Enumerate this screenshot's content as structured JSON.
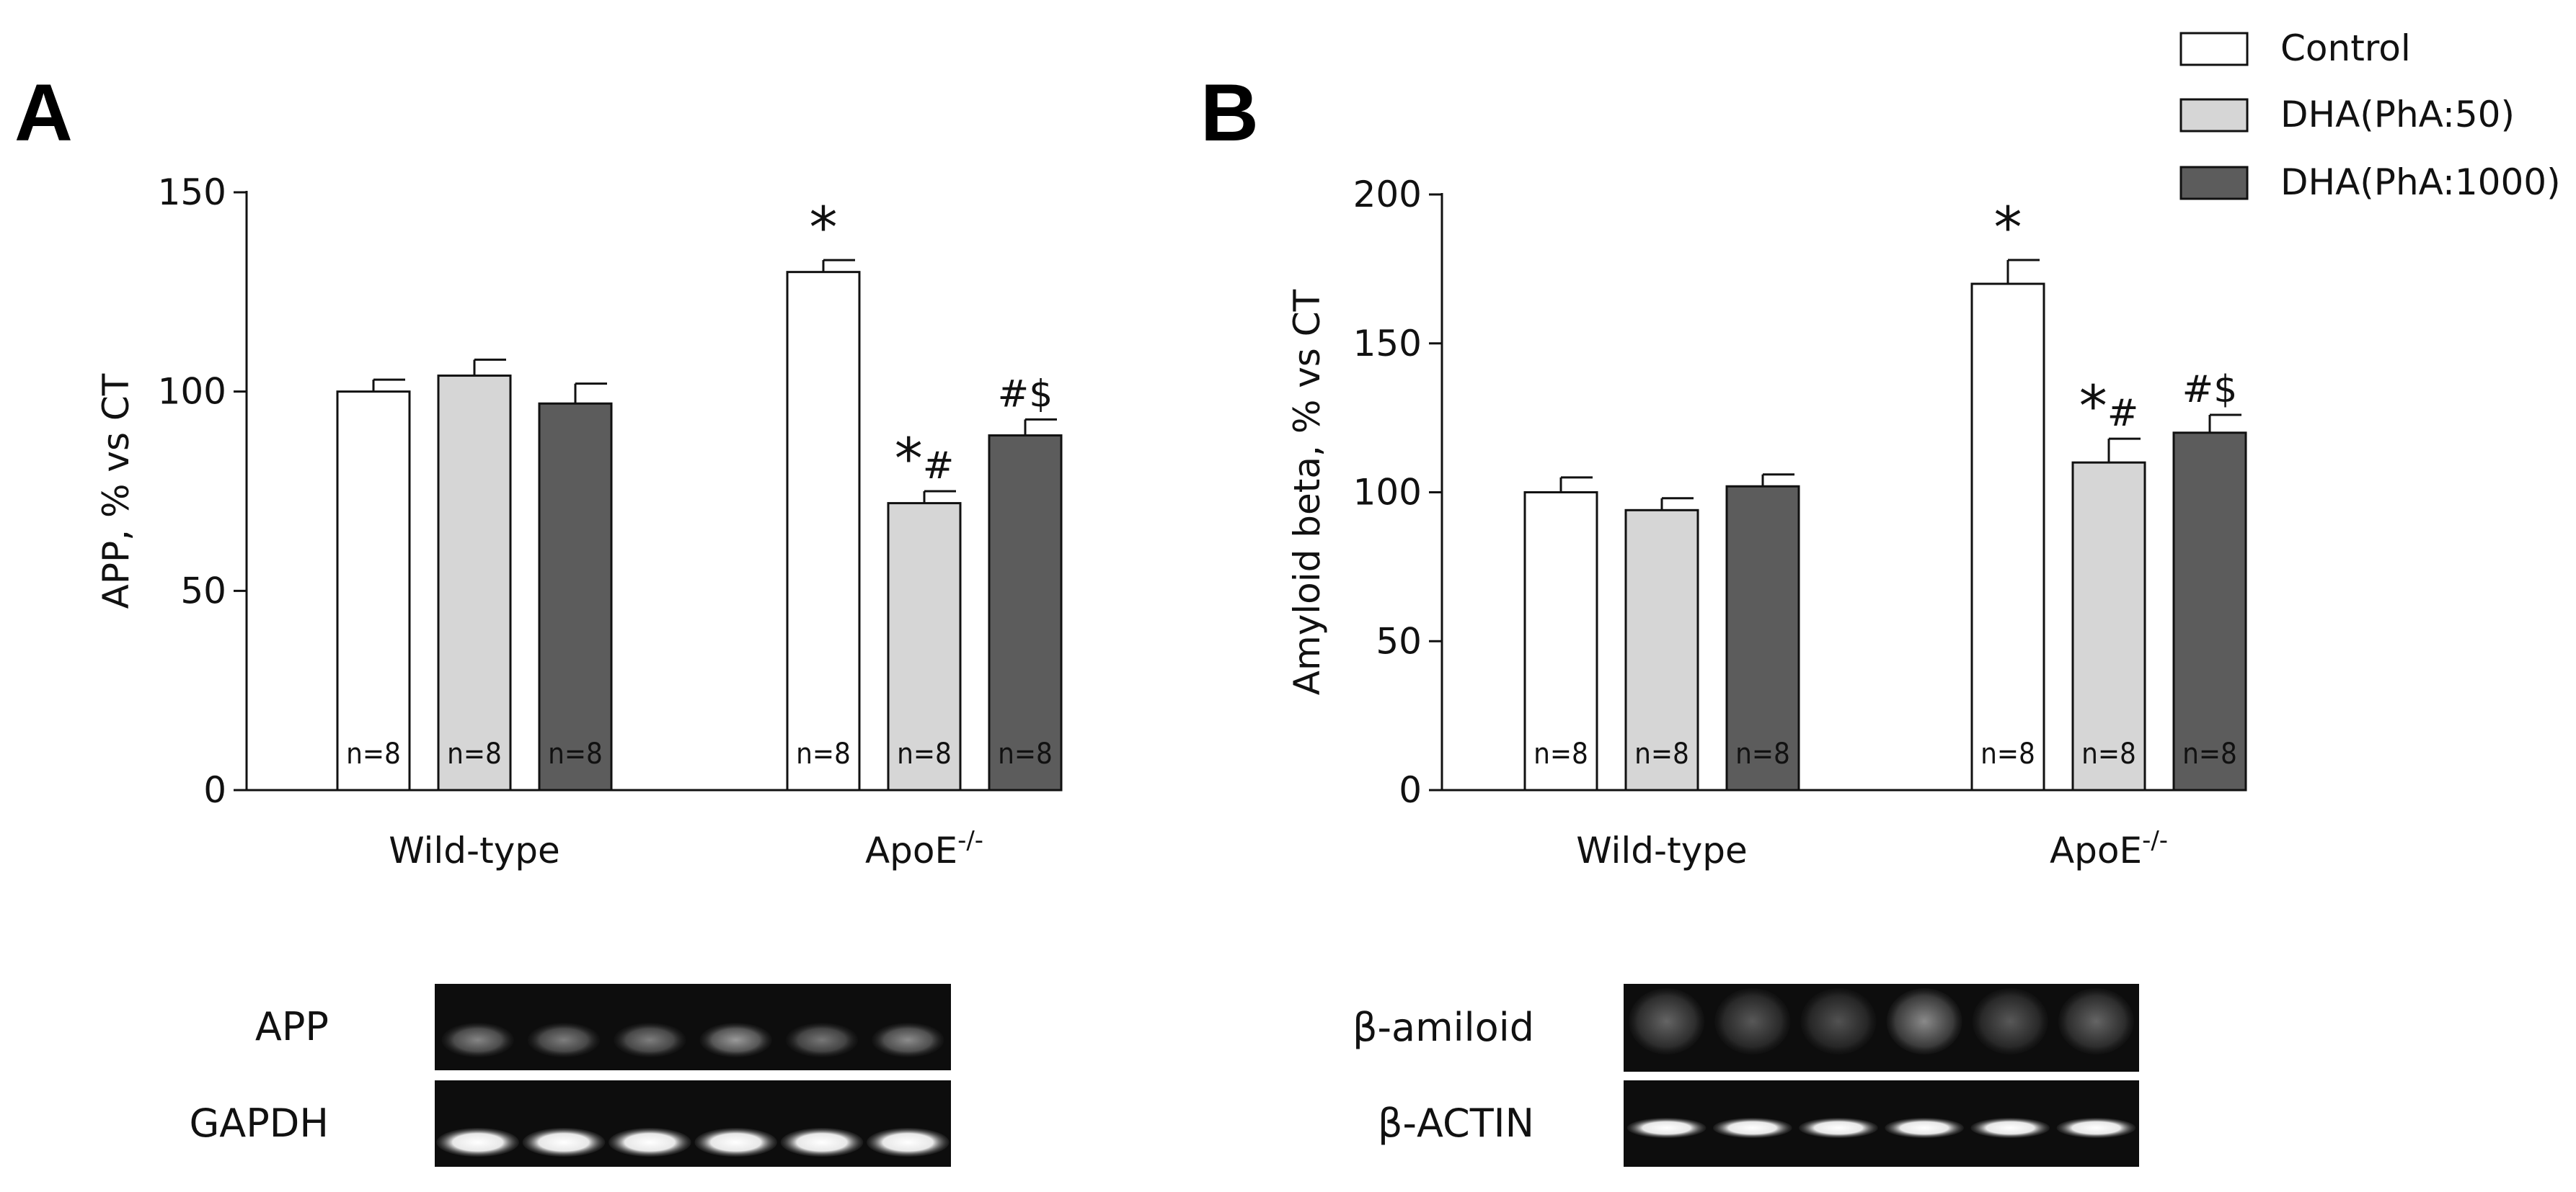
{
  "legend": {
    "position": "top-right",
    "entries": [
      {
        "label": "Control",
        "color": "#ffffff"
      },
      {
        "label": "DHA(PhA:50)",
        "color": "#d6d6d6"
      },
      {
        "label": "DHA(PhA:1000)",
        "color": "#5c5c5c"
      }
    ]
  },
  "chart_data": [
    {
      "type": "bar",
      "panel": "A",
      "ylabel": "APP, % vs CT",
      "ylim": [
        0,
        150
      ],
      "yticks": [
        0,
        50,
        100,
        150
      ],
      "categories": [
        "Wild-type",
        "ApoE-/-"
      ],
      "category_base": [
        "Wild-type",
        "ApoE"
      ],
      "category_sup": [
        "",
        "-/-"
      ],
      "series": [
        {
          "name": "Control",
          "values": [
            100,
            130
          ],
          "errors": [
            3,
            3
          ],
          "n": [
            "n=8",
            "n=8"
          ],
          "annotations": [
            "",
            "*"
          ]
        },
        {
          "name": "DHA(PhA:50)",
          "values": [
            104,
            72
          ],
          "errors": [
            4,
            3
          ],
          "n": [
            "n=8",
            "n=8"
          ],
          "annotations": [
            "",
            "*#"
          ]
        },
        {
          "name": "DHA(PhA:1000)",
          "values": [
            97,
            89
          ],
          "errors": [
            5,
            4
          ],
          "n": [
            "n=8",
            "n=8"
          ],
          "annotations": [
            "",
            "#$"
          ]
        }
      ],
      "blot_labels": [
        "APP",
        "GAPDH"
      ]
    },
    {
      "type": "bar",
      "panel": "B",
      "ylabel": "Amyloid beta, % vs CT",
      "ylim": [
        0,
        200
      ],
      "yticks": [
        0,
        50,
        100,
        150,
        200
      ],
      "categories": [
        "Wild-type",
        "ApoE-/-"
      ],
      "category_base": [
        "Wild-type",
        "ApoE"
      ],
      "category_sup": [
        "",
        "-/-"
      ],
      "series": [
        {
          "name": "Control",
          "values": [
            100,
            170
          ],
          "errors": [
            5,
            8
          ],
          "n": [
            "n=8",
            "n=8"
          ],
          "annotations": [
            "",
            "*"
          ]
        },
        {
          "name": "DHA(PhA:50)",
          "values": [
            94,
            110
          ],
          "errors": [
            4,
            8
          ],
          "n": [
            "n=8",
            "n=8"
          ],
          "annotations": [
            "",
            "*#"
          ]
        },
        {
          "name": "DHA(PhA:1000)",
          "values": [
            102,
            120
          ],
          "errors": [
            4,
            6
          ],
          "n": [
            "n=8",
            "n=8"
          ],
          "annotations": [
            "",
            "#$"
          ]
        }
      ],
      "blot_labels": [
        "β-amiloid",
        "β-ACTIN"
      ]
    }
  ]
}
